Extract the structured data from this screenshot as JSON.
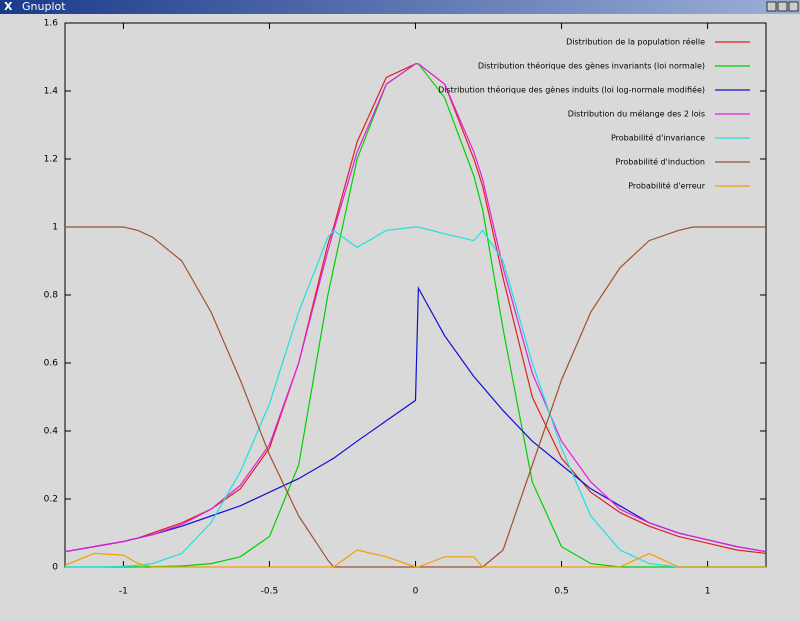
{
  "window": {
    "title": "Gnuplot"
  },
  "chart_data": {
    "type": "line",
    "x": [
      -1.2,
      -1.1,
      -1.0,
      -0.95,
      -0.9,
      -0.8,
      -0.7,
      -0.6,
      -0.5,
      -0.4,
      -0.3,
      -0.28,
      -0.2,
      -0.1,
      0,
      0.01,
      0.1,
      0.2,
      0.23,
      0.3,
      0.4,
      0.5,
      0.6,
      0.7,
      0.8,
      0.9,
      0.95,
      1.0,
      1.1,
      1.2
    ],
    "series": [
      {
        "name": "Distribution de la population réelle",
        "color": "#e02020",
        "values": [
          0.045,
          0.06,
          0.075,
          0.085,
          0.1,
          0.13,
          0.17,
          0.23,
          0.35,
          0.6,
          0.95,
          1.0,
          1.25,
          1.44,
          1.48,
          1.48,
          1.42,
          1.2,
          1.12,
          0.85,
          0.5,
          0.32,
          0.22,
          0.16,
          0.12,
          0.09,
          0.08,
          0.07,
          0.05,
          0.04
        ]
      },
      {
        "name": "Distribution théorique des gènes invariants (loi normale)",
        "color": "#00d000",
        "values": [
          0,
          0,
          0,
          0,
          0.001,
          0.003,
          0.01,
          0.03,
          0.09,
          0.3,
          0.8,
          0.88,
          1.2,
          1.42,
          1.48,
          1.48,
          1.38,
          1.15,
          1.05,
          0.7,
          0.25,
          0.06,
          0.01,
          0,
          0,
          0,
          0,
          0,
          0,
          0
        ]
      },
      {
        "name": "Distribution théorique des gènes induits (loi log-normale modifiée)",
        "color": "#1010d0",
        "values": [
          0.045,
          0.06,
          0.075,
          0.085,
          0.095,
          0.12,
          0.15,
          0.18,
          0.22,
          0.26,
          0.31,
          0.32,
          0.37,
          0.43,
          0.49,
          0.82,
          0.68,
          0.56,
          0.53,
          0.46,
          0.37,
          0.3,
          0.23,
          0.18,
          0.13,
          0.1,
          0.09,
          0.08,
          0.06,
          0.045
        ]
      },
      {
        "name": "Distribution du mélange des 2 lois",
        "color": "#e020e0",
        "values": [
          0.045,
          0.06,
          0.075,
          0.085,
          0.095,
          0.125,
          0.17,
          0.24,
          0.36,
          0.6,
          0.93,
          0.99,
          1.22,
          1.42,
          1.48,
          1.48,
          1.42,
          1.22,
          1.14,
          0.88,
          0.57,
          0.37,
          0.25,
          0.17,
          0.13,
          0.1,
          0.09,
          0.08,
          0.06,
          0.045
        ]
      },
      {
        "name": "Probabilité d'invariance",
        "color": "#20e0e0",
        "values": [
          0,
          0,
          0.002,
          0.005,
          0.01,
          0.04,
          0.13,
          0.28,
          0.48,
          0.75,
          0.97,
          0.99,
          0.94,
          0.99,
          1.0,
          1.0,
          0.98,
          0.96,
          0.99,
          0.9,
          0.6,
          0.35,
          0.15,
          0.05,
          0.01,
          0,
          0,
          0,
          0,
          0
        ]
      },
      {
        "name": "Probabilité d'induction",
        "color": "#a0522d",
        "values": [
          1,
          1,
          1,
          0.99,
          0.97,
          0.9,
          0.75,
          0.55,
          0.33,
          0.15,
          0.02,
          0,
          0,
          0,
          0,
          0,
          0,
          0,
          0,
          0.05,
          0.3,
          0.55,
          0.75,
          0.88,
          0.96,
          0.99,
          1,
          1,
          1,
          1
        ]
      },
      {
        "name": "Probabilité d'erreur",
        "color": "#f0a000",
        "values": [
          0.005,
          0.04,
          0.035,
          0.01,
          0,
          0,
          0,
          0,
          0,
          0,
          0,
          0,
          0.05,
          0.03,
          0,
          0,
          0.03,
          0.03,
          0,
          0,
          0,
          0,
          0,
          0,
          0.04,
          0,
          0,
          0,
          0,
          0
        ]
      }
    ],
    "xlim": [
      -1.2,
      1.2
    ],
    "ylim": [
      0,
      1.6
    ],
    "xticks": [
      -1,
      -0.5,
      0,
      0.5,
      1
    ],
    "yticks": [
      0,
      0.2,
      0.4,
      0.6,
      0.8,
      1,
      1.2,
      1.4,
      1.6
    ],
    "legend": "upper right",
    "grid": false
  }
}
